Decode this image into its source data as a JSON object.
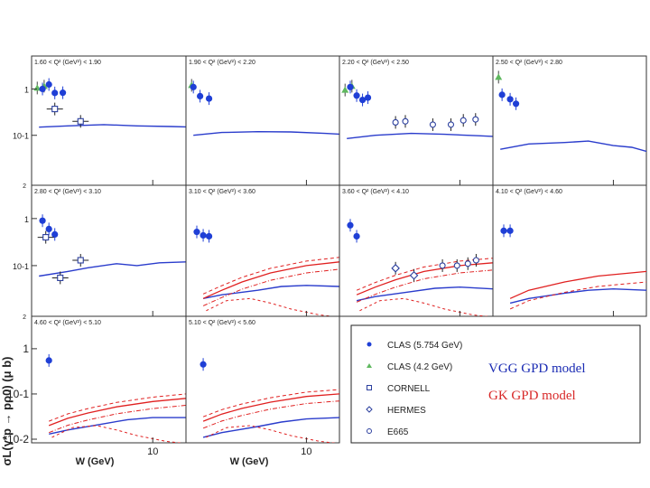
{
  "figure": {
    "y_axis_label": "σL(γ*p → pρ0) (μ b)",
    "y_axis_ticks": [
      "1",
      "10-1",
      "10-2"
    ],
    "x_axis_title": "W (GeV)",
    "x_axis_tick": "10",
    "edge_tick": "2"
  },
  "panels": [
    {
      "label": "1.60 < Q² (GeV²) < 1.90",
      "points": {
        "clas": [
          [
            2.1,
            1.0
          ],
          [
            2.3,
            1.25
          ],
          [
            2.5,
            0.82
          ],
          [
            2.8,
            0.83
          ]
        ],
        "clas42": [
          [
            1.95,
            1.05
          ],
          [
            2.15,
            1.15
          ]
        ],
        "cornell": [
          [
            2.5,
            0.37
          ],
          [
            3.6,
            0.2
          ]
        ],
        "hermes": [],
        "e665": []
      }
    },
    {
      "label": "1.90 < Q² (GeV²) < 2.20",
      "points": {
        "clas": [
          [
            2.0,
            1.1
          ],
          [
            2.2,
            0.7
          ],
          [
            2.5,
            0.62
          ]
        ],
        "clas42": [
          [
            1.95,
            1.2
          ]
        ],
        "cornell": [],
        "hermes": [],
        "e665": []
      }
    },
    {
      "label": "2.20 < Q² (GeV²) < 2.50",
      "points": {
        "clas": [
          [
            2.1,
            1.1
          ],
          [
            2.3,
            0.72
          ],
          [
            2.5,
            0.58
          ],
          [
            2.7,
            0.65
          ]
        ],
        "clas42": [
          [
            1.95,
            0.95
          ],
          [
            2.15,
            1.15
          ]
        ],
        "cornell": [],
        "hermes": [],
        "e665": [
          [
            4.0,
            0.19
          ],
          [
            4.6,
            0.2
          ],
          [
            6.8,
            0.17
          ],
          [
            8.8,
            0.17
          ],
          [
            10.5,
            0.21
          ],
          [
            12.5,
            0.22
          ]
        ]
      }
    },
    {
      "label": "2.50 < Q² (GeV²) < 2.80",
      "points": {
        "clas": [
          [
            2.05,
            0.75
          ],
          [
            2.3,
            0.6
          ],
          [
            2.5,
            0.48
          ]
        ],
        "clas42": [
          [
            1.95,
            1.8
          ]
        ],
        "cornell": [],
        "hermes": [],
        "e665": []
      }
    },
    {
      "label": "2.80 < Q² (GeV²) < 3.10",
      "points": {
        "clas": [
          [
            2.1,
            0.9
          ],
          [
            2.3,
            0.6
          ],
          [
            2.5,
            0.46
          ]
        ],
        "clas42": [],
        "cornell": [
          [
            2.2,
            0.4
          ],
          [
            2.7,
            0.055
          ],
          [
            3.6,
            0.13
          ]
        ],
        "hermes": [],
        "e665": []
      }
    },
    {
      "label": "3.10 < Q² (GeV²) < 3.60",
      "points": {
        "clas": [
          [
            2.1,
            0.52
          ],
          [
            2.3,
            0.44
          ],
          [
            2.5,
            0.42
          ]
        ],
        "clas42": [],
        "cornell": [],
        "hermes": [],
        "e665": []
      }
    },
    {
      "label": "3.60 < Q² (GeV²) < 4.10",
      "points": {
        "clas": [
          [
            2.1,
            0.72
          ],
          [
            2.3,
            0.42
          ]
        ],
        "clas42": [],
        "cornell": [],
        "hermes": [
          [
            4.0,
            0.088
          ],
          [
            5.2,
            0.062
          ]
        ],
        "e665": [
          [
            7.8,
            0.1
          ],
          [
            9.6,
            0.1
          ],
          [
            11.2,
            0.11
          ],
          [
            12.6,
            0.13
          ]
        ]
      }
    },
    {
      "label": "4.10 < Q² (GeV²) < 4.60",
      "points": {
        "clas": [
          [
            2.1,
            0.55
          ],
          [
            2.3,
            0.55
          ]
        ],
        "clas42": [],
        "cornell": [],
        "hermes": [],
        "e665": []
      }
    },
    {
      "label": "4.60 < Q² (GeV²) < 5.10",
      "points": {
        "clas": [
          [
            2.3,
            0.55
          ]
        ],
        "clas42": [],
        "cornell": [],
        "hermes": [],
        "e665": []
      }
    },
    {
      "label": "5.10 < Q² (GeV²) < 5.60",
      "points": {
        "clas": [
          [
            2.3,
            0.45
          ]
        ],
        "clas42": [],
        "cornell": [],
        "hermes": [],
        "e665": []
      }
    }
  ],
  "legend": {
    "items": [
      {
        "key": "clas",
        "label": "CLAS (5.754 GeV)"
      },
      {
        "key": "clas42",
        "label": "CLAS (4.2 GeV)"
      },
      {
        "key": "cornell",
        "label": "CORNELL"
      },
      {
        "key": "hermes",
        "label": "HERMES"
      },
      {
        "key": "e665",
        "label": "E665"
      }
    ],
    "vgg_label": "VGG GPD model",
    "gk_label": "GK GPD model"
  },
  "colors": {
    "clas": "#1f3fd6",
    "clas42": "#5fb85f",
    "open": "#2b3f9e",
    "vgg": "#2a3ccc",
    "gk": "#e02020"
  },
  "chart_data": {
    "type": "scatter",
    "title": "",
    "xlabel": "W (GeV)",
    "ylabel": "σL(γ*p → pρ0) (μ b)",
    "x_scale": "log",
    "y_scale": "log",
    "xlim": [
      1.8,
      16
    ],
    "ylim": [
      0.01,
      3
    ],
    "series": [
      {
        "name": "CLAS (5.754 GeV)",
        "marker": "filled-circle"
      },
      {
        "name": "CLAS (4.2 GeV)",
        "marker": "filled-triangle"
      },
      {
        "name": "CORNELL",
        "marker": "open-square"
      },
      {
        "name": "HERMES",
        "marker": "open-diamond"
      },
      {
        "name": "E665",
        "marker": "open-circle"
      }
    ],
    "models": [
      {
        "name": "VGG GPD model",
        "color": "blue",
        "curves": [
          [
            [
              2.0,
              0.15
            ],
            [
              3,
              0.16
            ],
            [
              5,
              0.17
            ],
            [
              8,
              0.16
            ],
            [
              13,
              0.155
            ],
            [
              16,
              0.152
            ]
          ],
          [
            [
              2.0,
              0.1
            ],
            [
              3,
              0.115
            ],
            [
              5,
              0.12
            ],
            [
              8,
              0.118
            ],
            [
              13,
              0.11
            ],
            [
              16,
              0.106
            ]
          ],
          [
            [
              2.0,
              0.085
            ],
            [
              3,
              0.1
            ],
            [
              5,
              0.11
            ],
            [
              8,
              0.105
            ],
            [
              13,
              0.098
            ],
            [
              16,
              0.095
            ]
          ],
          [
            [
              2.0,
              0.05
            ],
            [
              3,
              0.065
            ],
            [
              5,
              0.07
            ],
            [
              7,
              0.075
            ],
            [
              10,
              0.06
            ],
            [
              13,
              0.055
            ],
            [
              16,
              0.045
            ]
          ],
          [
            [
              2.0,
              0.06
            ],
            [
              3,
              0.075
            ],
            [
              4,
              0.09
            ],
            [
              6,
              0.11
            ],
            [
              8,
              0.1
            ],
            [
              11,
              0.115
            ],
            [
              16,
              0.12
            ]
          ],
          [
            [
              2.3,
              0.02
            ],
            [
              3,
              0.024
            ],
            [
              5,
              0.03
            ],
            [
              7,
              0.036
            ],
            [
              10,
              0.038
            ],
            [
              16,
              0.036
            ]
          ],
          [
            [
              2.3,
              0.018
            ],
            [
              3,
              0.022
            ],
            [
              5,
              0.028
            ],
            [
              7,
              0.033
            ],
            [
              10,
              0.035
            ],
            [
              16,
              0.032
            ]
          ],
          [
            [
              2.3,
              0.016
            ],
            [
              3,
              0.02
            ],
            [
              5,
              0.026
            ],
            [
              7,
              0.03
            ],
            [
              10,
              0.032
            ],
            [
              16,
              0.03
            ]
          ],
          [
            [
              2.3,
              0.013
            ],
            [
              3,
              0.016
            ],
            [
              5,
              0.022
            ],
            [
              7,
              0.027
            ],
            [
              10,
              0.03
            ],
            [
              16,
              0.03
            ]
          ],
          [
            [
              2.3,
              0.011
            ],
            [
              3,
              0.014
            ],
            [
              5,
              0.019
            ],
            [
              7,
              0.024
            ],
            [
              10,
              0.028
            ],
            [
              16,
              0.03
            ]
          ]
        ]
      },
      {
        "name": "GK GPD model",
        "color": "red",
        "curves": [
          [
            [
              2.3,
              0.02
            ],
            [
              3,
              0.03
            ],
            [
              4,
              0.045
            ],
            [
              6,
              0.07
            ],
            [
              10,
              0.1
            ],
            [
              16,
              0.12
            ]
          ],
          [
            [
              2.3,
              0.024
            ],
            [
              3,
              0.035
            ],
            [
              4,
              0.05
            ],
            [
              6,
              0.075
            ],
            [
              10,
              0.1
            ],
            [
              16,
              0.115
            ]
          ],
          [
            [
              2.3,
              0.028
            ],
            [
              3,
              0.038
            ],
            [
              4,
              0.05
            ],
            [
              6,
              0.07
            ],
            [
              10,
              0.09
            ],
            [
              16,
              0.1
            ]
          ],
          [
            [
              2.3,
              0.02
            ],
            [
              3,
              0.029
            ],
            [
              4,
              0.038
            ],
            [
              6,
              0.052
            ],
            [
              10,
              0.068
            ],
            [
              16,
              0.08
            ]
          ],
          [
            [
              2.3,
              0.025
            ],
            [
              3,
              0.036
            ],
            [
              4,
              0.048
            ],
            [
              6,
              0.066
            ],
            [
              10,
              0.088
            ],
            [
              16,
              0.1
            ]
          ],
          [
            [
              2.3,
              0.02
            ],
            [
              3,
              0.03
            ],
            [
              4,
              0.04
            ],
            [
              6,
              0.056
            ],
            [
              10,
              0.072
            ],
            [
              16,
              0.082
            ]
          ],
          [
            [
              2.3,
              0.022
            ],
            [
              3,
              0.033
            ],
            [
              4,
              0.045
            ],
            [
              6,
              0.062
            ],
            [
              10,
              0.082
            ],
            [
              16,
              0.095
            ]
          ],
          [
            [
              2.3,
              0.018
            ],
            [
              3,
              0.028
            ],
            [
              4,
              0.038
            ],
            [
              6,
              0.054
            ],
            [
              10,
              0.07
            ],
            [
              16,
              0.08
            ]
          ]
        ]
      }
    ]
  }
}
